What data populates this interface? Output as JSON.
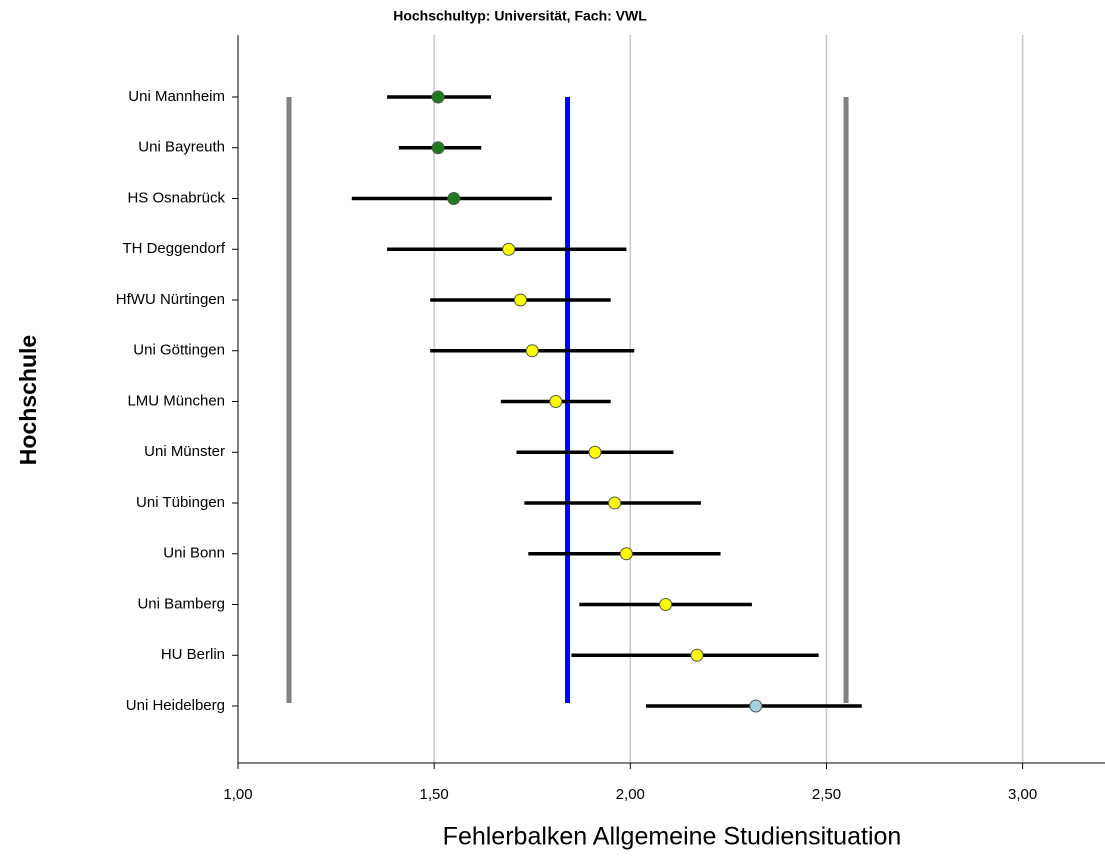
{
  "chart_data": {
    "type": "errorbar",
    "title": "Hochschultyp: Universität, Fach: VWL",
    "x_label": "Fehlerbalken Allgemeine Studiensituation",
    "y_label": "Hochschule",
    "categories": [
      "Uni Mannheim",
      "Uni Bayreuth",
      "HS Osnabrück",
      "TH Deggendorf",
      "HfWU Nürtingen",
      "Uni Göttingen",
      "LMU München",
      "Uni Münster",
      "Uni Tübingen",
      "Uni Bonn",
      "Uni Bamberg",
      "HU Berlin",
      "Uni Heidelberg"
    ],
    "means": [
      1.51,
      1.51,
      1.55,
      1.69,
      1.72,
      1.75,
      1.81,
      1.91,
      1.96,
      1.99,
      2.09,
      2.17,
      2.32
    ],
    "lower": [
      1.38,
      1.41,
      1.29,
      1.38,
      1.49,
      1.49,
      1.67,
      1.71,
      1.73,
      1.74,
      1.87,
      1.85,
      2.04
    ],
    "upper": [
      1.645,
      1.62,
      1.8,
      1.99,
      1.95,
      2.01,
      1.95,
      2.11,
      2.18,
      2.23,
      2.31,
      2.48,
      2.59
    ],
    "colors": [
      "#1e7b1e",
      "#1e7b1e",
      "#1e7b1e",
      "#ffff00",
      "#ffff00",
      "#ffff00",
      "#ffff00",
      "#ffff00",
      "#ffff00",
      "#ffff00",
      "#ffff00",
      "#ffff00",
      "#a8d0e0"
    ],
    "reference_lines": [
      {
        "value": 1.13,
        "color": "#808080"
      },
      {
        "value": 1.84,
        "color": "#0000ff"
      },
      {
        "value": 2.55,
        "color": "#808080"
      }
    ],
    "xlim": [
      1,
      3.21
    ],
    "xticks": [
      {
        "value": 1,
        "label": "1,00"
      },
      {
        "value": 1.5,
        "label": "1,50"
      },
      {
        "value": 2,
        "label": "2,00"
      },
      {
        "value": 2.5,
        "label": "2,50"
      },
      {
        "value": 3,
        "label": "3,00"
      }
    ],
    "grid": true
  }
}
